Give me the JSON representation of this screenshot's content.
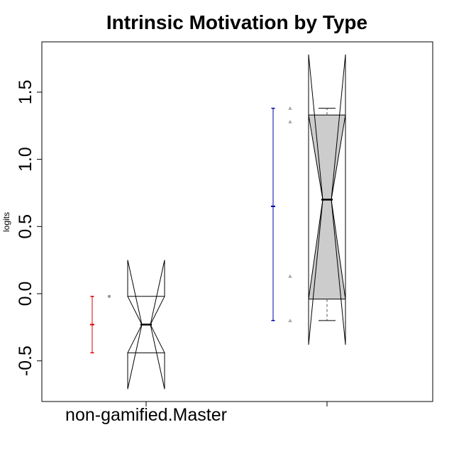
{
  "chart_data": {
    "type": "box",
    "title": "Intrinsic Motivation by Type",
    "ylabel": "logits",
    "xlabel": "",
    "ylim": [
      -0.8,
      1.9
    ],
    "grid": false,
    "yticks": [
      {
        "value": -0.5,
        "label": "-0.5"
      },
      {
        "value": 0.0,
        "label": "0.0"
      },
      {
        "value": 0.5,
        "label": "0.5"
      },
      {
        "value": 1.0,
        "label": "1.0"
      },
      {
        "value": 1.5,
        "label": "1.5"
      }
    ],
    "xtick_labels": [
      "non-gamified.Master",
      ""
    ],
    "groups": [
      {
        "box": {
          "whisker_low": -0.44,
          "q1": -0.44,
          "median": -0.23,
          "q3": -0.02,
          "whisker_high": -0.02,
          "notch_low": 0.25,
          "notch_high": -0.71,
          "fill": "#ffffff"
        },
        "points": [
          {
            "y": -0.02,
            "shape": "circle",
            "color": "#999999"
          }
        ],
        "mean_ci": {
          "low": -0.44,
          "mean": -0.23,
          "high": -0.02,
          "color": "#dd0000"
        }
      },
      {
        "box": {
          "whisker_low": -0.2,
          "q1": -0.04,
          "median": 0.7,
          "q3": 1.33,
          "whisker_high": 1.38,
          "notch_low": -0.38,
          "notch_high": 1.78,
          "fill": "#cccccc"
        },
        "points": [
          {
            "y": 1.38,
            "shape": "triangle",
            "color": "#aaaaaa"
          },
          {
            "y": 1.28,
            "shape": "triangle",
            "color": "#aaaaaa"
          },
          {
            "y": 0.13,
            "shape": "triangle",
            "color": "#aaaaaa"
          },
          {
            "y": -0.2,
            "shape": "triangle",
            "color": "#aaaaaa"
          }
        ],
        "mean_ci": {
          "low": -0.2,
          "mean": 0.65,
          "high": 1.38,
          "color": "#0000aa"
        }
      }
    ]
  }
}
